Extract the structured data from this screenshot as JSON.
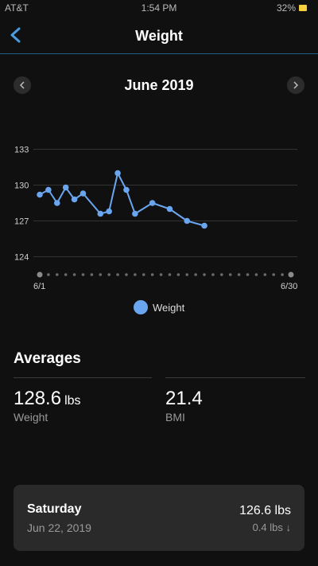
{
  "status_bar": {
    "carrier": "AT&T",
    "time": "1:54 PM",
    "battery": "32%"
  },
  "nav": {
    "title": "Weight",
    "back_icon": "chevron-left-icon"
  },
  "month": {
    "label": "June 2019",
    "prev_icon": "chevron-left-icon",
    "next_icon": "chevron-right-icon"
  },
  "chart_data": {
    "type": "line",
    "y_ticks": [
      133,
      130,
      127,
      124
    ],
    "ylim": [
      121.5,
      134.5
    ],
    "xlim": [
      1,
      30
    ],
    "x_start_label": "6/1",
    "x_end_label": "6/30",
    "days": 30,
    "line_color": "#6aa6ef",
    "series": [
      {
        "name": "Weight",
        "points": [
          [
            1,
            129.2
          ],
          [
            2,
            129.6
          ],
          [
            3,
            128.5
          ],
          [
            4,
            129.8
          ],
          [
            5,
            128.8
          ],
          [
            6,
            129.3
          ],
          [
            8,
            127.6
          ],
          [
            9,
            127.8
          ],
          [
            10,
            131.0
          ],
          [
            11,
            129.6
          ],
          [
            12,
            127.6
          ],
          [
            14,
            128.5
          ],
          [
            16,
            128.0
          ],
          [
            18,
            127.0
          ],
          [
            20,
            126.6
          ]
        ]
      }
    ],
    "grid": true
  },
  "legend": {
    "label": "Weight"
  },
  "averages": {
    "title": "Averages",
    "weight_value": "128.6",
    "weight_unit": "lbs",
    "weight_label": "Weight",
    "bmi_value": "21.4",
    "bmi_label": "BMI"
  },
  "day_card": {
    "day": "Saturday",
    "date": "Jun 22, 2019",
    "weight": "126.6 lbs",
    "change": "0.4 lbs ↓"
  }
}
